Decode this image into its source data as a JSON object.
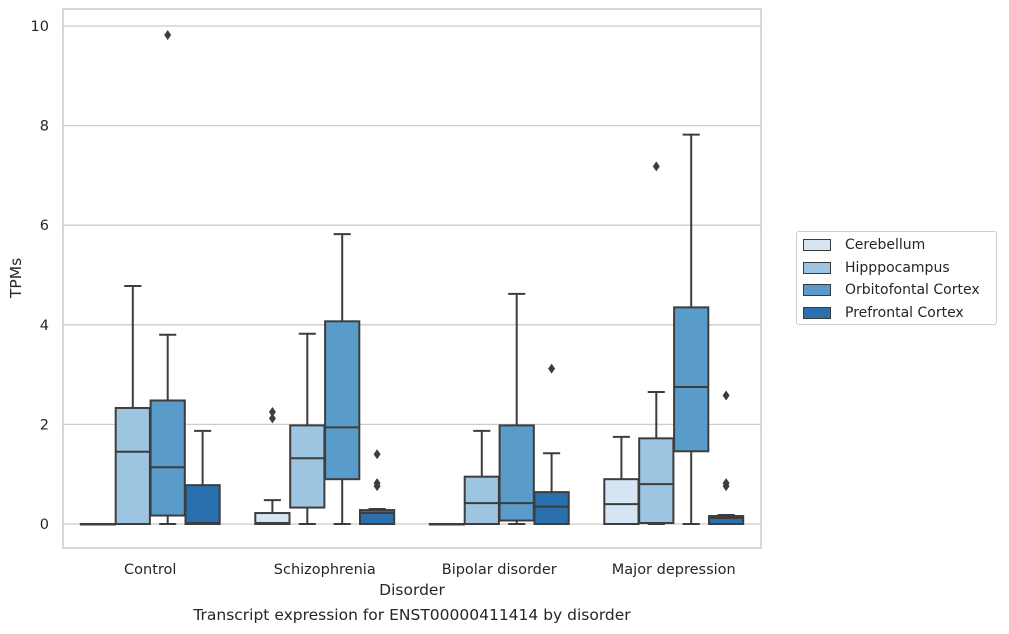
{
  "chart_data": {
    "type": "boxplot",
    "xlabel": "Disorder",
    "ylabel": "TPMs",
    "ylim": [
      -0.48,
      10.35
    ],
    "yticks": [
      0,
      2,
      4,
      6,
      8,
      10
    ],
    "grid": true,
    "legend_position": "right",
    "categories": [
      "Control",
      "Schizophrenia",
      "Bipolar disorder",
      "Major depression"
    ],
    "series": [
      {
        "name": "Cerebellum",
        "color": "#d6e5f4",
        "boxes": [
          {
            "q1": 0,
            "median": 0,
            "q3": 0,
            "whisker_low": 0,
            "whisker_high": 0,
            "outliers": []
          },
          {
            "q1": 0,
            "median": 0.02,
            "q3": 0.22,
            "whisker_low": 0,
            "whisker_high": 0.48,
            "outliers": [
              2.12,
              2.25
            ]
          },
          {
            "q1": 0,
            "median": 0,
            "q3": 0,
            "whisker_low": 0,
            "whisker_high": 0,
            "outliers": []
          },
          {
            "q1": 0,
            "median": 0.4,
            "q3": 0.9,
            "whisker_low": 0,
            "whisker_high": 1.75,
            "outliers": []
          }
        ]
      },
      {
        "name": "Hipppocampus",
        "color": "#9dc4e0",
        "boxes": [
          {
            "q1": 0,
            "median": 1.45,
            "q3": 2.33,
            "whisker_low": 0,
            "whisker_high": 4.78,
            "outliers": []
          },
          {
            "q1": 0.33,
            "median": 1.32,
            "q3": 1.98,
            "whisker_low": 0,
            "whisker_high": 3.82,
            "outliers": []
          },
          {
            "q1": 0,
            "median": 0.42,
            "q3": 0.95,
            "whisker_low": 0,
            "whisker_high": 1.87,
            "outliers": []
          },
          {
            "q1": 0.02,
            "median": 0.8,
            "q3": 1.72,
            "whisker_low": 0,
            "whisker_high": 2.65,
            "outliers": [
              7.18
            ]
          }
        ]
      },
      {
        "name": "Orbitofontal Cortex",
        "color": "#5a9cc9",
        "boxes": [
          {
            "q1": 0.17,
            "median": 1.14,
            "q3": 2.48,
            "whisker_low": 0,
            "whisker_high": 3.8,
            "outliers": [
              9.82
            ]
          },
          {
            "q1": 0.9,
            "median": 1.94,
            "q3": 4.07,
            "whisker_low": 0,
            "whisker_high": 5.82,
            "outliers": []
          },
          {
            "q1": 0.07,
            "median": 0.42,
            "q3": 1.98,
            "whisker_low": 0,
            "whisker_high": 4.62,
            "outliers": []
          },
          {
            "q1": 1.46,
            "median": 2.75,
            "q3": 4.35,
            "whisker_low": 0,
            "whisker_high": 7.82,
            "outliers": []
          }
        ]
      },
      {
        "name": "Prefrontal Cortex",
        "color": "#2a6fae",
        "boxes": [
          {
            "q1": 0,
            "median": 0.02,
            "q3": 0.78,
            "whisker_low": 0,
            "whisker_high": 1.87,
            "outliers": []
          },
          {
            "q1": 0,
            "median": 0.22,
            "q3": 0.28,
            "whisker_low": 0,
            "whisker_high": 0.3,
            "outliers": [
              0.76,
              0.82,
              1.4
            ]
          },
          {
            "q1": 0,
            "median": 0.35,
            "q3": 0.64,
            "whisker_low": 0,
            "whisker_high": 1.42,
            "outliers": [
              3.12
            ]
          },
          {
            "q1": 0,
            "median": 0.12,
            "q3": 0.16,
            "whisker_low": 0,
            "whisker_high": 0.18,
            "outliers": [
              0.76,
              0.82,
              2.58
            ]
          }
        ]
      }
    ]
  },
  "caption": "Transcript expression for ENST00000411414 by disorder"
}
